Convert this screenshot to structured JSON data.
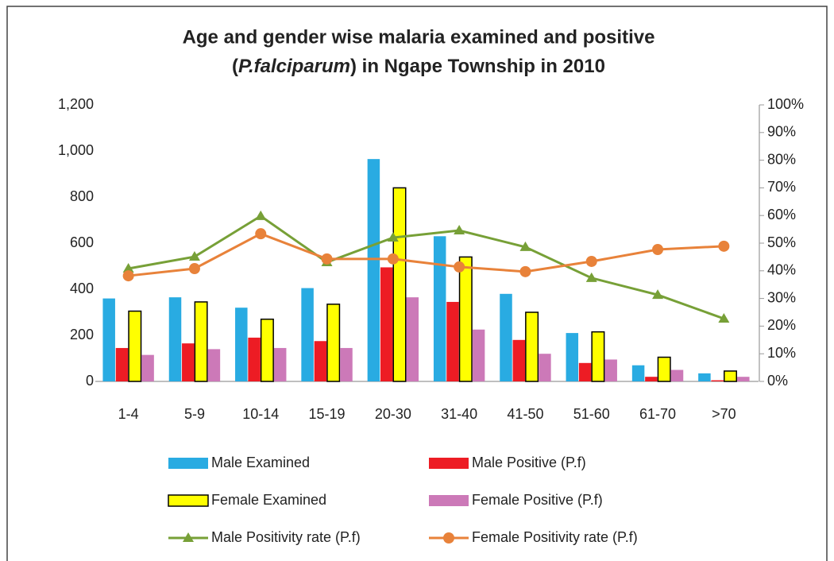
{
  "chart_data": {
    "type": "bar",
    "title": [
      "Age and gender wise malaria examined and positive",
      "(",
      "P.falciparum",
      ") in Ngape Township in 2010"
    ],
    "categories": [
      "1-4",
      "5-9",
      "10-14",
      "15-19",
      "20-30",
      "31-40",
      "41-50",
      "51-60",
      "61-70",
      ">70"
    ],
    "series": [
      {
        "name": "Male Examined",
        "type": "bar",
        "color": "#29abe2",
        "values": [
          360,
          365,
          320,
          405,
          965,
          630,
          380,
          210,
          70,
          35
        ]
      },
      {
        "name": "Male Positive (P.f)",
        "type": "bar",
        "color": "#ed1c24",
        "values": [
          145,
          165,
          190,
          175,
          495,
          345,
          180,
          80,
          20,
          5
        ]
      },
      {
        "name": "Female Examined",
        "type": "bar",
        "color": "#ffff00",
        "stroke": "#000000",
        "values": [
          305,
          345,
          270,
          335,
          840,
          540,
          300,
          215,
          105,
          45
        ]
      },
      {
        "name": "Female Positive (P.f)",
        "type": "bar",
        "color": "#cc79b8",
        "values": [
          115,
          140,
          145,
          145,
          365,
          225,
          120,
          95,
          50,
          20
        ]
      },
      {
        "name": "Male Positivity rate (P.f)",
        "type": "line",
        "marker": "triangle",
        "axis": "y2",
        "color": "#77a037",
        "values": [
          40.8,
          45.1,
          59.8,
          43.1,
          52,
          54.6,
          48.6,
          37.4,
          31.3,
          22.7
        ]
      },
      {
        "name": "Female Positivity rate (P.f)",
        "type": "line",
        "marker": "circle",
        "axis": "y2",
        "color": "#e8823a",
        "values": [
          38.2,
          40.8,
          53.4,
          44.3,
          44.3,
          41.4,
          39.7,
          43.4,
          47.7,
          48.9
        ]
      }
    ],
    "ylim": [
      0,
      1200
    ],
    "yticks": [
      0,
      200,
      400,
      600,
      800,
      {
        "value": 1000,
        "label": "1,000"
      },
      {
        "value": 1200,
        "label": "1,200"
      }
    ],
    "y2lim": [
      0,
      100
    ],
    "y2ticks": [
      {
        "value": 0,
        "label": "0%"
      },
      {
        "value": 10,
        "label": "10%"
      },
      {
        "value": 20,
        "label": "20%"
      },
      {
        "value": 30,
        "label": "30%"
      },
      {
        "value": 40,
        "label": "40%"
      },
      {
        "value": 50,
        "label": "50%"
      },
      {
        "value": 60,
        "label": "60%"
      },
      {
        "value": 70,
        "label": "70%"
      },
      {
        "value": 80,
        "label": "80%"
      },
      {
        "value": 90,
        "label": "90%"
      },
      {
        "value": 100,
        "label": "100%"
      }
    ],
    "grid": false
  }
}
